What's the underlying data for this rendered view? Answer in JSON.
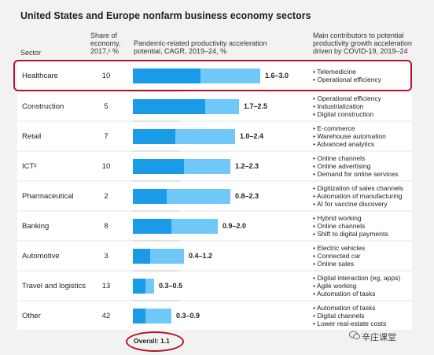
{
  "title": "United States and Europe nonfarm business economy sectors",
  "headers": {
    "sector": "Sector",
    "share_l1": "Share of",
    "share_l2": "economy,",
    "share_l3": "2017,¹ %",
    "potential_l1": "Pandemic-related productivity acceleration",
    "potential_l2": "potential, CAGR, 2019–24, %",
    "contrib_l1": "Main contributors to potential",
    "contrib_l2": "productivity growth acceleration",
    "contrib_l3": "driven by COVID-19, 2019–24"
  },
  "colors": {
    "dark": "#1a9be8",
    "light": "#6fc8f7",
    "highlight": "#b2152b"
  },
  "chart_data": {
    "type": "bar",
    "title": "United States and Europe nonfarm business economy sectors",
    "xlim": [
      0,
      3.2
    ],
    "overall_label": "Overall: 1.1",
    "overall_value": 1.1,
    "rows": [
      {
        "sector": "Healthcare",
        "share": "10",
        "low": 1.6,
        "high": 3.0,
        "range": "1.6–3.0",
        "contributors": [
          "• Telemedicine",
          "• Operational efficiency"
        ],
        "highlighted": true
      },
      {
        "sector": "Construction",
        "share": "5",
        "low": 1.7,
        "high": 2.5,
        "range": "1.7–2.5",
        "contributors": [
          "• Operational efficiency",
          "• Industrialization",
          "• Digital construction"
        ]
      },
      {
        "sector": "Retail",
        "share": "7",
        "low": 1.0,
        "high": 2.4,
        "range": "1.0–2.4",
        "contributors": [
          "• E-commerce",
          "• Warehouse automation",
          "• Advanced analytics"
        ]
      },
      {
        "sector": "ICT²",
        "share": "10",
        "low": 1.2,
        "high": 2.3,
        "range": "1.2–2.3",
        "contributors": [
          "• Online channels",
          "• Online advertising",
          "• Demand for online services"
        ]
      },
      {
        "sector": "Pharmaceutical",
        "share": "2",
        "low": 0.8,
        "high": 2.3,
        "range": "0.8–2.3",
        "contributors": [
          "• Digitization of sales channels",
          "• Automation of manufacturing",
          "• AI for vaccine discovery"
        ]
      },
      {
        "sector": "Banking",
        "share": "8",
        "low": 0.9,
        "high": 2.0,
        "range": "0.9–2.0",
        "contributors": [
          "• Hybrid working",
          "• Online channels",
          "• Shift to digital payments"
        ]
      },
      {
        "sector": "Automotive",
        "share": "3",
        "low": 0.4,
        "high": 1.2,
        "range": "0.4–1.2",
        "contributors": [
          "• Electric vehicles",
          "• Connected car",
          "• Online sales"
        ]
      },
      {
        "sector": "Travel and logistics",
        "share": "13",
        "low": 0.3,
        "high": 0.5,
        "range": "0.3–0.5",
        "contributors": [
          "• Digital interaction (eg, apps)",
          "• Agile working",
          "• Automation of tasks"
        ]
      },
      {
        "sector": "Other",
        "share": "42",
        "low": 0.3,
        "high": 0.9,
        "range": "0.3–0.9",
        "contributors": [
          "• Automation of tasks",
          "• Digital channels",
          "• Lower real-estate costs"
        ]
      }
    ]
  },
  "watermark": "辛庄课堂"
}
